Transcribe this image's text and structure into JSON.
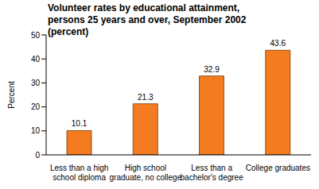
{
  "chart_data": {
    "type": "bar",
    "title": "Volunteer rates by educational attainment, persons 25 years and over, September 2002  (percent)",
    "y_label": "Percent",
    "categories": [
      "Less than a high school diploma",
      "High school graduate, no college",
      "Less than a bachelor's degree",
      "College graduates"
    ],
    "values": [
      10.1,
      21.3,
      32.9,
      43.6
    ],
    "color": "#f47b20",
    "ylim": [
      0,
      50
    ],
    "yticks": [
      0,
      10,
      20,
      30,
      40,
      50
    ],
    "grid": false,
    "data_labels": true
  }
}
